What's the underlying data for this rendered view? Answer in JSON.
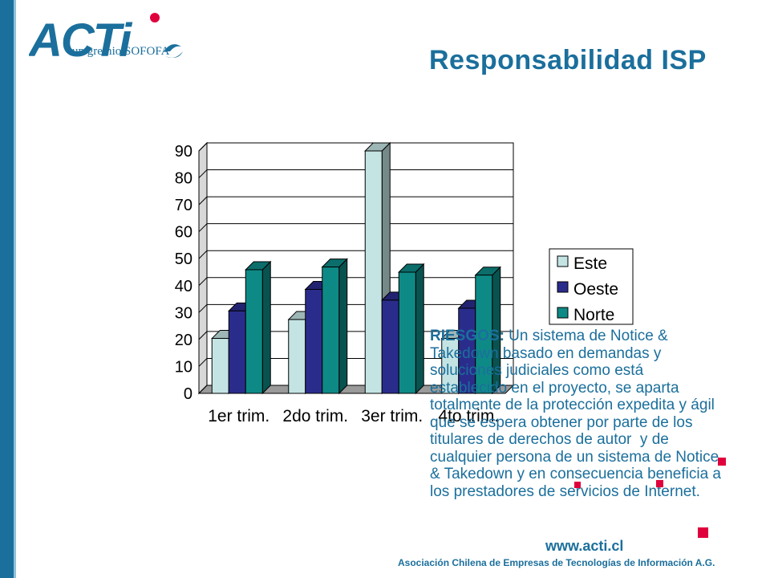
{
  "header": {
    "logo_text": "ACTi",
    "logo_subtitle": "un gremio SOFOFA",
    "title": "Responsabilidad ISP"
  },
  "chart_data": {
    "type": "bar",
    "style": "3d-clustered",
    "categories": [
      "1er trim.",
      "2do trim.",
      "3er trim.",
      "4to trim."
    ],
    "series": [
      {
        "name": "Este",
        "values": [
          20.4,
          27.4,
          90,
          20.4
        ],
        "color": "#c4e4e4"
      },
      {
        "name": "Oeste",
        "values": [
          30.6,
          38.6,
          34.6,
          31.6
        ],
        "color": "#2a2c8c"
      },
      {
        "name": "Norte",
        "values": [
          45.9,
          46.9,
          45,
          43.9
        ],
        "color": "#0e8a86"
      }
    ],
    "ylim": [
      0,
      90
    ],
    "yticks": [
      "0",
      "10",
      "20",
      "30",
      "40",
      "50",
      "60",
      "70",
      "80",
      "90"
    ],
    "grid": true,
    "legend": "right",
    "title": "",
    "xlabel": "",
    "ylabel": ""
  },
  "body": {
    "lead": "RIESGOS:",
    "text": " Un sistema de Notice &\nTakedown basado en demandas y\nsoluciones judiciales como está\nestablecido en el proyecto, se aparta\ntotalmente de la protección expedita y ágil\nque se espera obtener por parte de los\ntitulares de derechos de autor  y de\ncualquier persona de un sistema de Notice\n& Takedown y en consecuencia beneficia a\nlos prestadores de servicios de Internet."
  },
  "footer": {
    "url": "www.acti.cl",
    "org": "Asociación Chilena de Empresas de Tecnologías de Información A.G."
  },
  "colors": {
    "brand": "#1b6f9c",
    "accent": "#e0003c"
  }
}
